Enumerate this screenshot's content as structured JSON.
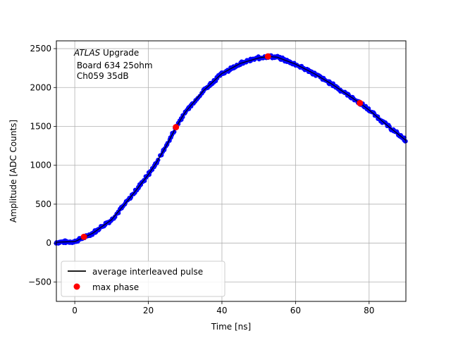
{
  "chart_data": {
    "type": "scatter",
    "xlabel": "Time [ns]",
    "ylabel": "Amplitude [ADC Counts]",
    "xlim": [
      -5,
      90
    ],
    "ylim": [
      -750,
      2600
    ],
    "xticks": [
      0,
      20,
      40,
      60,
      80
    ],
    "yticks": [
      -500,
      0,
      500,
      1000,
      1500,
      2000,
      2500
    ],
    "grid": true,
    "annotation": {
      "italic": "ATLAS",
      "rest": " Upgrade",
      "line2": " Board 634 25ohm",
      "line3": " Ch059 35dB"
    },
    "legend": {
      "placement": "lower-left",
      "entries": [
        {
          "label": "average interleaved pulse",
          "color": "#000000",
          "marker": "line"
        },
        {
          "label": "max phase",
          "color": "#ff0000",
          "marker": "circle"
        }
      ]
    },
    "pulse_curve": {
      "x": [
        -5,
        0,
        2,
        5,
        10,
        15,
        20,
        22,
        25,
        27.5,
        30,
        35,
        40,
        45,
        50,
        52.5,
        55,
        60,
        65,
        70,
        75,
        77.5,
        80,
        85,
        90
      ],
      "y": [
        10,
        20,
        60,
        130,
        300,
        580,
        880,
        1020,
        1260,
        1490,
        1680,
        1960,
        2180,
        2310,
        2380,
        2400,
        2390,
        2300,
        2180,
        2040,
        1880,
        1800,
        1710,
        1510,
        1320
      ]
    },
    "series": [
      {
        "name": "max phase",
        "color": "#ff0000",
        "x": [
          2.5,
          27.5,
          52.5,
          77.5
        ],
        "y": [
          80,
          1490,
          2400,
          1800
        ]
      }
    ],
    "samples_color": "#0000ff"
  }
}
